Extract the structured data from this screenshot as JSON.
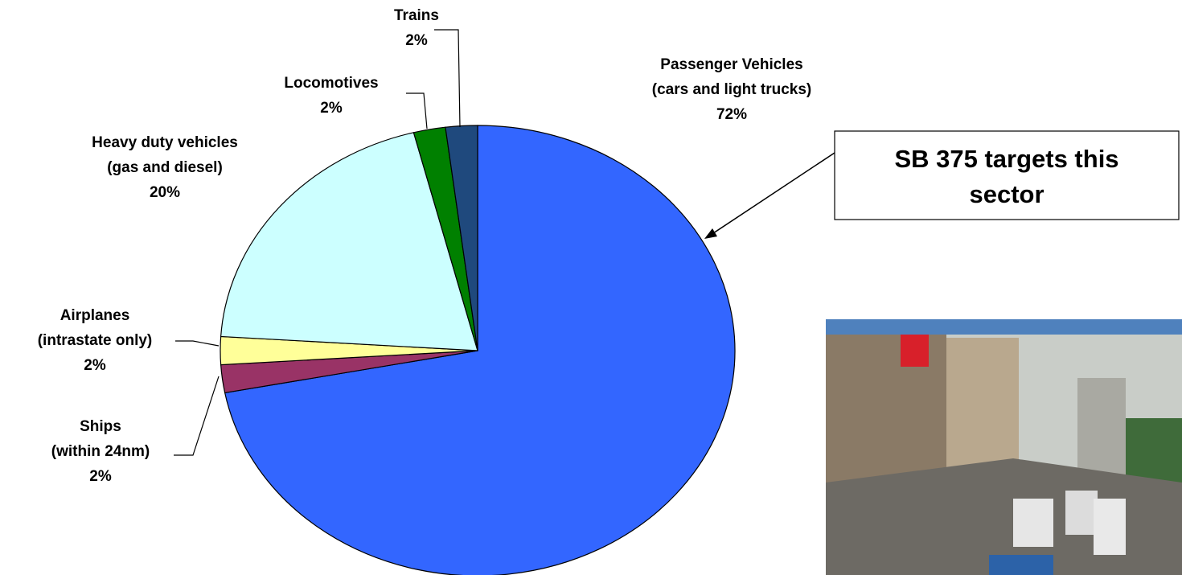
{
  "chart_data": {
    "type": "pie",
    "categories": [
      [
        "Passenger Vehicles",
        "(cars and light trucks)"
      ],
      [
        "Ships",
        "(within 24nm)"
      ],
      [
        "Airplanes",
        "(intrastate only)"
      ],
      [
        "Heavy duty vehicles",
        "(gas and diesel)"
      ],
      [
        "Locomotives"
      ],
      [
        "Trains"
      ]
    ],
    "values": [
      72,
      2,
      2,
      20,
      2,
      2
    ],
    "value_labels": [
      "72%",
      "2%",
      "2%",
      "20%",
      "2%",
      "2%"
    ],
    "colors": [
      "#3366ff",
      "#993366",
      "#ffff99",
      "#ccffff",
      "#008000",
      "#1f497d"
    ],
    "annotation": [
      "SB 375 targets this",
      "sector"
    ]
  }
}
